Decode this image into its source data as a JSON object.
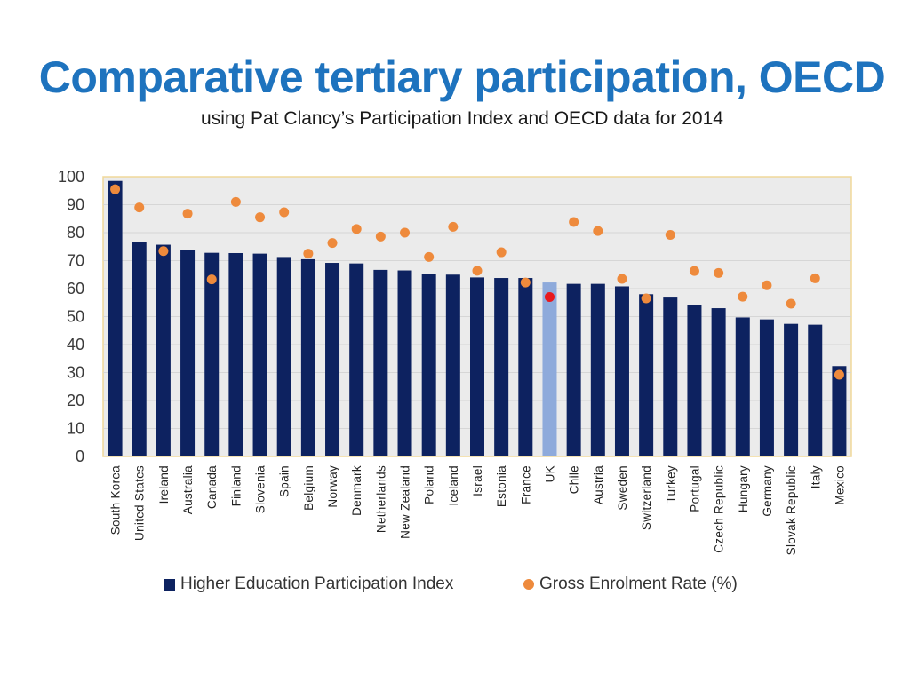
{
  "title": "Comparative tertiary participation, OECD",
  "subtitle": "using Pat Clancy’s Participation Index and OECD data for 2014",
  "colors": {
    "bar": "#0d2260",
    "bar_highlight": "#8eaadb",
    "dot": "#ee8a3c",
    "dot_highlight": "#e8191e",
    "plot_bg": "#ebebeb",
    "plot_border": "#f0d89a",
    "title": "#1e73be"
  },
  "legend": {
    "index_label": "Higher Education Participation Index",
    "rate_label": "Gross Enrolment Rate (%)"
  },
  "chart_data": {
    "type": "bar",
    "title": "Comparative tertiary participation, OECD",
    "xlabel": "",
    "ylabel": "",
    "ylim": [
      0,
      100
    ],
    "yticks": [
      0,
      10,
      20,
      30,
      40,
      50,
      60,
      70,
      80,
      90,
      100
    ],
    "highlight_category": "UK",
    "categories": [
      "South Korea",
      "United States",
      "Ireland",
      "Australia",
      "Canada",
      "Finland",
      "Slovenia",
      "Spain",
      "Belgium",
      "Norway",
      "Denmark",
      "Netherlands",
      "New Zealand",
      "Poland",
      "Iceland",
      "Israel",
      "Estonia",
      "France",
      "UK",
      "Chile",
      "Austria",
      "Sweden",
      "Switzerland",
      "Turkey",
      "Portugal",
      "Czech Republic",
      "Hungary",
      "Germany",
      "Slovak Republic",
      "Italy",
      "Mexico"
    ],
    "series": [
      {
        "name": "Higher Education Participation Index",
        "kind": "bar",
        "values": [
          98.5,
          76.8,
          75.7,
          73.8,
          72.8,
          72.7,
          72.5,
          71.3,
          70.5,
          69.2,
          69.0,
          66.7,
          66.5,
          65.1,
          65.0,
          64.0,
          63.8,
          63.8,
          62.2,
          61.7,
          61.7,
          60.8,
          58.0,
          56.8,
          54.0,
          53.0,
          49.7,
          49.0,
          47.4,
          47.1,
          32.3
        ]
      },
      {
        "name": "Gross Enrolment Rate (%)",
        "kind": "scatter",
        "values": [
          95.5,
          89.0,
          73.4,
          86.8,
          63.3,
          91.0,
          85.5,
          87.3,
          72.5,
          76.3,
          81.3,
          78.6,
          80.0,
          71.3,
          82.1,
          66.4,
          73.0,
          62.2,
          57.0,
          83.8,
          80.6,
          63.5,
          56.5,
          79.2,
          66.3,
          65.6,
          57.1,
          61.2,
          54.6,
          63.7,
          29.2
        ]
      }
    ]
  }
}
